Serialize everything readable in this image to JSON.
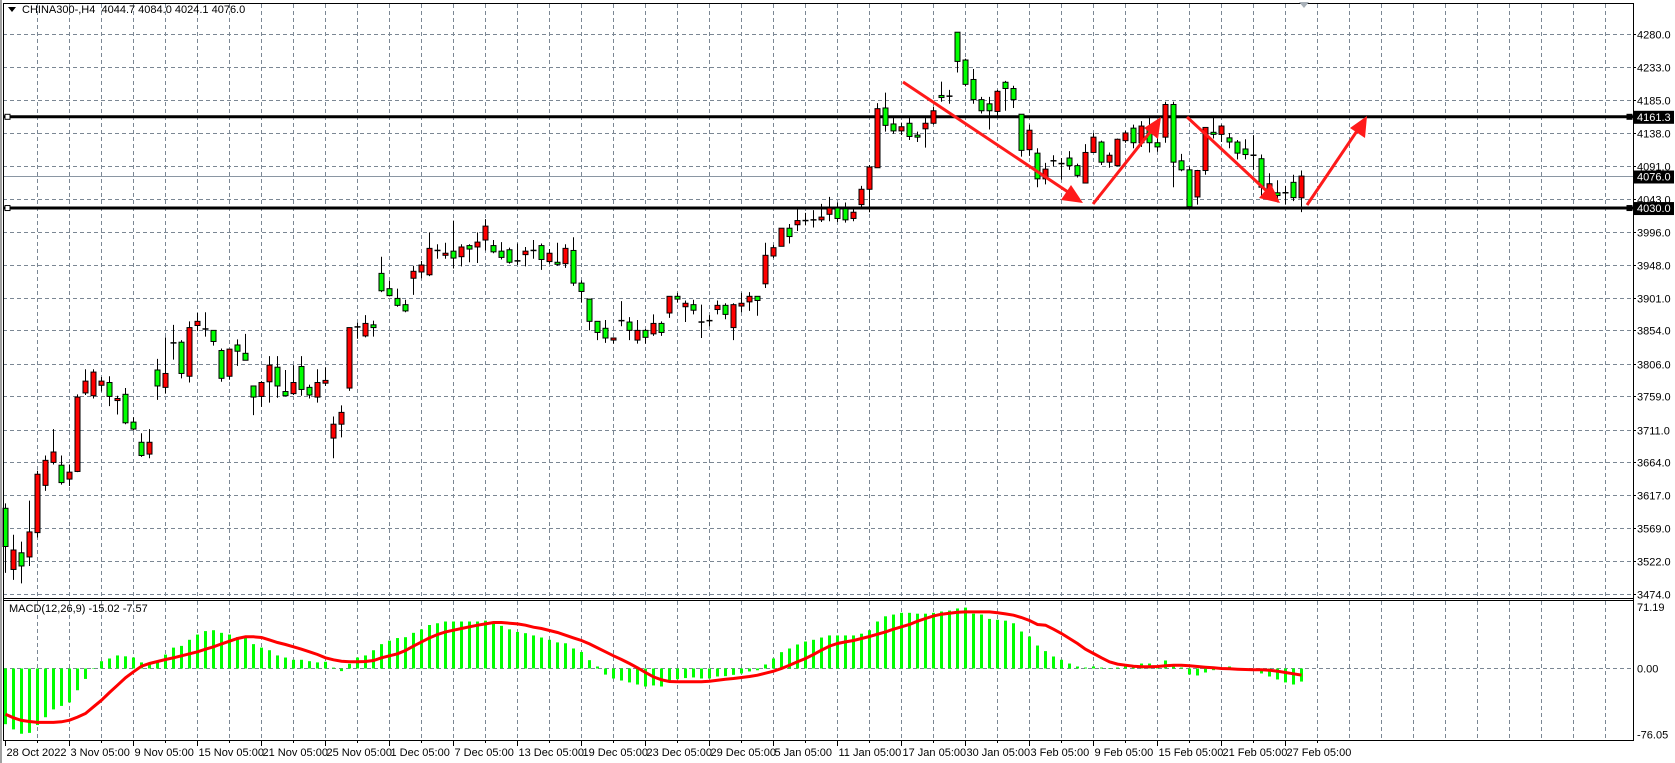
{
  "header": {
    "title": "CHINA300-,H4",
    "ohlc": "4044.7 4084.0 4024.1 4076.0"
  },
  "colors": {
    "bull_candle": "#ff0000",
    "bear_candle": "#00ff00",
    "grid": "#7b8794",
    "level_line": "#000000",
    "bid_line": "#8a96a3",
    "arrow": "#ff1a1a",
    "macd_histogram": "#00ff00",
    "macd_signal": "#ff0000"
  },
  "chart_data": {
    "type": "candlestick",
    "symbol": "CHINA300-",
    "timeframe": "H4",
    "candle_format": [
      "open",
      "high",
      "low",
      "close"
    ],
    "price_axis": {
      "range": [
        3474.0,
        4280.0
      ],
      "ticks": [
        "4280.0",
        "4233.0",
        "4185.0",
        "4138.0",
        "4091.0",
        "4043.0",
        "3996.0",
        "3948.0",
        "3901.0",
        "3854.0",
        "3806.0",
        "3759.0",
        "3711.0",
        "3664.0",
        "3617.0",
        "3569.0",
        "3522.0",
        "3474.0"
      ],
      "grid": true
    },
    "time_axis": {
      "labels": [
        "28 Oct 2022",
        "3 Nov 05:00",
        "9 Nov 05:00",
        "15 Nov 05:00",
        "21 Nov 05:00",
        "25 Nov 05:00",
        "1 Dec 05:00",
        "7 Dec 05:00",
        "13 Dec 05:00",
        "19 Dec 05:00",
        "23 Dec 05:00",
        "29 Dec 05:00",
        "5 Jan 05:00",
        "11 Jan 05:00",
        "17 Jan 05:00",
        "30 Jan 05:00",
        "3 Feb 05:00",
        "9 Feb 05:00",
        "15 Feb 05:00",
        "21 Feb 05:00",
        "27 Feb 05:00"
      ],
      "grid": true
    },
    "levels": [
      {
        "price": 4161.3,
        "label": "4161.3"
      },
      {
        "price": 4030.0,
        "label": "4030.0"
      }
    ],
    "bid": {
      "price": 4076.0,
      "label": "4076.0"
    },
    "candles": [
      [
        3598,
        3605,
        3505,
        3543
      ],
      [
        3510,
        3560,
        3495,
        3538
      ],
      [
        3534,
        3550,
        3490,
        3515
      ],
      [
        3528,
        3609,
        3515,
        3564
      ],
      [
        3563,
        3652,
        3556,
        3647
      ],
      [
        3631,
        3674,
        3623,
        3667
      ],
      [
        3664,
        3712,
        3661,
        3679
      ],
      [
        3660,
        3674,
        3632,
        3635
      ],
      [
        3640,
        3661,
        3630,
        3650
      ],
      [
        3651,
        3762,
        3650,
        3758
      ],
      [
        3764,
        3798,
        3761,
        3781
      ],
      [
        3760,
        3798,
        3756,
        3794
      ],
      [
        3775,
        3787,
        3766,
        3781
      ],
      [
        3779,
        3788,
        3745,
        3759
      ],
      [
        3753,
        3760,
        3733,
        3756
      ],
      [
        3762,
        3771,
        3719,
        3721
      ],
      [
        3722,
        3729,
        3710,
        3712
      ],
      [
        3693,
        3706,
        3672,
        3674
      ],
      [
        3676,
        3712,
        3670,
        3693
      ],
      [
        3797,
        3813,
        3754,
        3774
      ],
      [
        3772,
        3844,
        3763,
        3792
      ],
      [
        3836,
        3862,
        3812,
        3836
      ],
      [
        3837,
        3840,
        3785,
        3792
      ],
      [
        3788,
        3867,
        3779,
        3858
      ],
      [
        3861,
        3879,
        3853,
        3867
      ],
      [
        3856,
        3880,
        3845,
        3856
      ],
      [
        3854,
        3854,
        3832,
        3838
      ],
      [
        3825,
        3828,
        3780,
        3785
      ],
      [
        3788,
        3827,
        3783,
        3827
      ],
      [
        3833,
        3841,
        3803,
        3824
      ],
      [
        3821,
        3849,
        3811,
        3811
      ],
      [
        3774,
        3774,
        3732,
        3758
      ],
      [
        3759,
        3781,
        3744,
        3779
      ],
      [
        3780,
        3817,
        3750,
        3804
      ],
      [
        3801,
        3817,
        3757,
        3774
      ],
      [
        3766,
        3797,
        3759,
        3760
      ],
      [
        3763,
        3804,
        3761,
        3779
      ],
      [
        3802,
        3817,
        3760,
        3769
      ],
      [
        3772,
        3776,
        3756,
        3761
      ],
      [
        3758,
        3798,
        3750,
        3779
      ],
      [
        3778,
        3801,
        3774,
        3782
      ],
      [
        3699,
        3730,
        3670,
        3719
      ],
      [
        3719,
        3746,
        3700,
        3736
      ],
      [
        3771,
        3858,
        3767,
        3858
      ],
      [
        3859,
        3865,
        3842,
        3859
      ],
      [
        3846,
        3876,
        3844,
        3864
      ],
      [
        3862,
        3868,
        3845,
        3858
      ],
      [
        3936,
        3960,
        3909,
        3911
      ],
      [
        3914,
        3925,
        3903,
        3904
      ],
      [
        3900,
        3914,
        3888,
        3890
      ],
      [
        3891,
        3898,
        3880,
        3882
      ],
      [
        3929,
        3947,
        3905,
        3939
      ],
      [
        3938,
        3954,
        3929,
        3948
      ],
      [
        3934,
        3995,
        3932,
        3972
      ],
      [
        3969,
        3978,
        3957,
        3969
      ],
      [
        3962,
        3980,
        3957,
        3965
      ],
      [
        3968,
        4012,
        3943,
        3958
      ],
      [
        3960,
        3978,
        3946,
        3974
      ],
      [
        3976,
        3978,
        3952,
        3971
      ],
      [
        3974,
        3995,
        3951,
        3981
      ],
      [
        3984,
        4014,
        3969,
        4004
      ],
      [
        3976,
        3984,
        3965,
        3967
      ],
      [
        3968,
        3981,
        3956,
        3959
      ],
      [
        3970,
        3973,
        3950,
        3952
      ],
      [
        3954,
        3979,
        3948,
        3954
      ],
      [
        3963,
        3974,
        3946,
        3968
      ],
      [
        3969,
        3984,
        3957,
        3969
      ],
      [
        3976,
        3979,
        3941,
        3956
      ],
      [
        3953,
        3971,
        3950,
        3965
      ],
      [
        3952,
        3980,
        3947,
        3949
      ],
      [
        3950,
        3978,
        3944,
        3972
      ],
      [
        3969,
        3988,
        3918,
        3922
      ],
      [
        3922,
        3926,
        3894,
        3910
      ],
      [
        3899,
        3899,
        3854,
        3867
      ],
      [
        3867,
        3867,
        3840,
        3851
      ],
      [
        3857,
        3869,
        3836,
        3843
      ],
      [
        3840,
        3844,
        3835,
        3843
      ],
      [
        3868,
        3896,
        3860,
        3868
      ],
      [
        3866,
        3873,
        3840,
        3854
      ],
      [
        3840,
        3869,
        3835,
        3854
      ],
      [
        3854,
        3856,
        3835,
        3844
      ],
      [
        3849,
        3877,
        3846,
        3864
      ],
      [
        3864,
        3867,
        3846,
        3851
      ],
      [
        3879,
        3903,
        3872,
        3903
      ],
      [
        3903,
        3908,
        3894,
        3899
      ],
      [
        3888,
        3897,
        3866,
        3893
      ],
      [
        3891,
        3898,
        3877,
        3883
      ],
      [
        3866,
        3891,
        3843,
        3866
      ],
      [
        3868,
        3876,
        3860,
        3868
      ],
      [
        3884,
        3897,
        3877,
        3890
      ],
      [
        3890,
        3893,
        3870,
        3877
      ],
      [
        3858,
        3893,
        3840,
        3891
      ],
      [
        3889,
        3908,
        3880,
        3893
      ],
      [
        3895,
        3909,
        3882,
        3903
      ],
      [
        3903,
        3903,
        3875,
        3897
      ],
      [
        3921,
        3980,
        3915,
        3962
      ],
      [
        3961,
        3977,
        3958,
        3973
      ],
      [
        3975,
        4001,
        3975,
        4001
      ],
      [
        4001,
        4007,
        3979,
        3989
      ],
      [
        4006,
        4030,
        3997,
        4012
      ],
      [
        4012,
        4023,
        4005,
        4012
      ],
      [
        4013,
        4027,
        4002,
        4013
      ],
      [
        4013,
        4036,
        4010,
        4017
      ],
      [
        4021,
        4046,
        4011,
        4030
      ],
      [
        4030,
        4038,
        4010,
        4015
      ],
      [
        4029,
        4038,
        4009,
        4013
      ],
      [
        4015,
        4030,
        4011,
        4024
      ],
      [
        4035,
        4062,
        4032,
        4057
      ],
      [
        4057,
        4092,
        4024,
        4089
      ],
      [
        4088,
        4181,
        4088,
        4173
      ],
      [
        4174,
        4196,
        4140,
        4149
      ],
      [
        4151,
        4160,
        4137,
        4141
      ],
      [
        4141,
        4153,
        4135,
        4147
      ],
      [
        4152,
        4160,
        4128,
        4133
      ],
      [
        4135,
        4140,
        4125,
        4132
      ],
      [
        4144,
        4160,
        4117,
        4152
      ],
      [
        4152,
        4176,
        4150,
        4170
      ],
      [
        4192,
        4212,
        4183,
        4189
      ],
      [
        4191,
        4200,
        4180,
        4191
      ],
      [
        4283,
        4283,
        4225,
        4241
      ],
      [
        4243,
        4245,
        4205,
        4208
      ],
      [
        4215,
        4230,
        4180,
        4186
      ],
      [
        4186,
        4190,
        4166,
        4170
      ],
      [
        4180,
        4190,
        4143,
        4170
      ],
      [
        4169,
        4200,
        4162,
        4198
      ],
      [
        4211,
        4213,
        4170,
        4202
      ],
      [
        4202,
        4206,
        4174,
        4186
      ],
      [
        4165,
        4165,
        4104,
        4113
      ],
      [
        4114,
        4150,
        4105,
        4142
      ],
      [
        4109,
        4116,
        4060,
        4072
      ],
      [
        4072,
        4095,
        4064,
        4086
      ],
      [
        4098,
        4106,
        4090,
        4098
      ],
      [
        4094,
        4102,
        4071,
        4094
      ],
      [
        4102,
        4112,
        4085,
        4091
      ],
      [
        4091,
        4094,
        4074,
        4077
      ],
      [
        4066,
        4122,
        4066,
        4110
      ],
      [
        4110,
        4138,
        4110,
        4132
      ],
      [
        4125,
        4127,
        4092,
        4096
      ],
      [
        4096,
        4110,
        4088,
        4106
      ],
      [
        4091,
        4130,
        4090,
        4129
      ],
      [
        4127,
        4141,
        4124,
        4138
      ],
      [
        4145,
        4150,
        4116,
        4124
      ],
      [
        4124,
        4155,
        4118,
        4148
      ],
      [
        4146,
        4160,
        4110,
        4124
      ],
      [
        4124,
        4130,
        4111,
        4118
      ],
      [
        4132,
        4183,
        4124,
        4179
      ],
      [
        4179,
        4183,
        4060,
        4096
      ],
      [
        4098,
        4108,
        4083,
        4085
      ],
      [
        4085,
        4090,
        4030,
        4032
      ],
      [
        4046,
        4085,
        4035,
        4084
      ],
      [
        4084,
        4146,
        4078,
        4146
      ],
      [
        4139,
        4160,
        4130,
        4136
      ],
      [
        4136,
        4150,
        4125,
        4148
      ],
      [
        4131,
        4138,
        4116,
        4125
      ],
      [
        4125,
        4128,
        4100,
        4109
      ],
      [
        4115,
        4129,
        4100,
        4107
      ],
      [
        4106,
        4135,
        4085,
        4106
      ],
      [
        4101,
        4107,
        4045,
        4060
      ],
      [
        4058,
        4080,
        4045,
        4065
      ],
      [
        4052,
        4070,
        4038,
        4048
      ],
      [
        4052,
        4062,
        4035,
        4052
      ],
      [
        4067,
        4078,
        4040,
        4045
      ],
      [
        4044.7,
        4084.0,
        4024.1,
        4076.0
      ]
    ],
    "macd": {
      "title": "MACD(12,26,9) -15.02 -7.57",
      "range": [
        -76.05,
        71.19
      ],
      "ticks": [
        "71.19",
        "0.00",
        "-76.05"
      ],
      "main": [
        -64,
        -70,
        -75,
        -74,
        -65,
        -56,
        -47,
        -43,
        -39,
        -25,
        -12,
        -0.4,
        8.4,
        11.5,
        15,
        14,
        12.6,
        7,
        6,
        9,
        16,
        24,
        26,
        33,
        39,
        43,
        44,
        41,
        39,
        36,
        36,
        28,
        24,
        21,
        15,
        12.6,
        10,
        10,
        8.4,
        7,
        7.7,
        1,
        -3,
        5.4,
        12.6,
        15,
        21,
        28,
        32,
        35,
        36,
        41,
        45,
        50,
        52,
        54,
        54,
        54,
        54,
        54,
        55,
        52,
        49,
        45,
        42,
        40.6,
        38,
        35.6,
        33,
        30,
        29,
        23,
        19,
        9.6,
        2.3,
        -7,
        -11.5,
        -13.8,
        -16,
        -18.4,
        -20.7,
        -19.5,
        -20.7,
        -13.8,
        -12.3,
        -11,
        -10.3,
        -11.5,
        -11.5,
        -9.2,
        -8.8,
        -7.3,
        -5.7,
        -3.4,
        -2,
        4.6,
        11.5,
        18.8,
        23,
        27.6,
        31,
        33,
        35.6,
        38,
        38,
        38,
        38,
        40,
        44,
        54,
        60,
        62,
        64,
        64,
        63,
        63,
        64,
        65.5,
        66.6,
        69,
        70,
        63,
        62,
        57,
        56,
        55,
        52,
        42.5,
        36.8,
        26.4,
        20,
        13.8,
        10,
        5.7,
        2.3,
        1.1,
        2.3,
        1.1,
        -0.4,
        1.1,
        2.3,
        2.3,
        5.7,
        5.7,
        2.3,
        9.2,
        2.3,
        1.1,
        -6.9,
        -8,
        -4.6,
        -1.9,
        -0.4,
        2.3,
        0,
        -0.4,
        -0.8,
        -5.7,
        -9.2,
        -12.6,
        -16,
        -18.4,
        -15.02
      ],
      "signal": [
        -52.5,
        -56.7,
        -59.7,
        -60.9,
        -62,
        -62,
        -62,
        -61.3,
        -59.4,
        -55.9,
        -51.7,
        -44,
        -36.4,
        -27.6,
        -19.2,
        -10.7,
        -3.8,
        2.7,
        5.7,
        8,
        10.3,
        12.3,
        14.6,
        16.9,
        19.2,
        22.2,
        24.9,
        28.3,
        31.4,
        34.5,
        36.4,
        36.4,
        35.6,
        32.9,
        29.9,
        27.6,
        24.9,
        22.2,
        19.2,
        16.1,
        12.3,
        10,
        8.4,
        7.7,
        7.7,
        8,
        9.2,
        12.3,
        14.6,
        16.9,
        20.7,
        25.7,
        30.6,
        35.2,
        39.1,
        42.1,
        44,
        46,
        47.9,
        49.8,
        51.3,
        52.9,
        52.9,
        52.1,
        51.3,
        49.8,
        47.5,
        46,
        43.7,
        41.4,
        38.3,
        35.2,
        32.2,
        28.3,
        23.7,
        19.2,
        14.6,
        10.3,
        5.7,
        0.8,
        -4.6,
        -9.6,
        -13,
        -14.9,
        -15.3,
        -15.3,
        -15.3,
        -15.3,
        -14.6,
        -13.4,
        -12.3,
        -11.5,
        -10.3,
        -9.2,
        -7.7,
        -5.4,
        -3.1,
        0,
        3.8,
        7.7,
        11.5,
        16.1,
        21.1,
        25.7,
        28.7,
        30.6,
        32.2,
        34.5,
        36.8,
        39.4,
        42.1,
        45.2,
        47.9,
        50.6,
        54.4,
        57.5,
        60.5,
        62.4,
        63.6,
        64.7,
        65.1,
        65.1,
        65.1,
        65.1,
        64,
        62.8,
        61.3,
        58.6,
        55.2,
        50.6,
        49.8,
        45.2,
        40.2,
        34.5,
        28.7,
        22.2,
        17.2,
        12.3,
        7.7,
        5,
        3.8,
        2.7,
        1.9,
        1.9,
        2.3,
        3.1,
        3.8,
        3.8,
        3.1,
        2.3,
        1.5,
        0.8,
        0,
        -0.4,
        -0.8,
        -1.1,
        -1.5,
        -1.5,
        -1.9,
        -3.1,
        -4.6,
        -6.1,
        -7.57
      ]
    }
  }
}
